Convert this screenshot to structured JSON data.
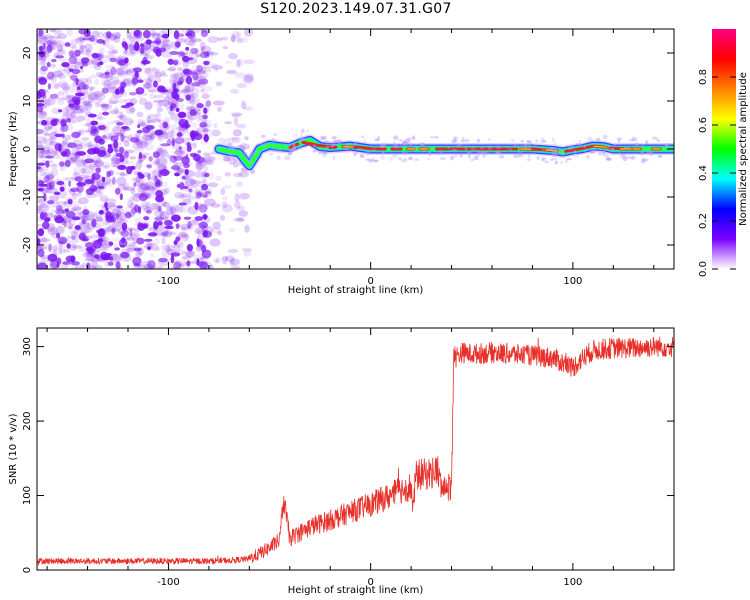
{
  "title": "S120.2023.149.07.31.G07",
  "colors": {
    "snr_line": "#e8302a",
    "noise_scatter": "#7a16f0",
    "ridge_core": "#e8202a",
    "axis": "#000000"
  },
  "chart_data": [
    {
      "type": "heatmap",
      "name": "spectrogram",
      "xlabel": "Height of straight line (km)",
      "ylabel": "Frequency (Hz)",
      "xlim": [
        -165,
        150
      ],
      "ylim": [
        -25,
        25
      ],
      "x_ticks": [
        -100,
        0,
        100
      ],
      "y_ticks": [
        -20,
        -10,
        0,
        10,
        20
      ],
      "x_tick_labels": [
        "-100",
        "0",
        "100"
      ],
      "y_tick_labels": [
        "-20",
        "-10",
        "0",
        "10",
        "20"
      ],
      "noise_region_x": [
        -165,
        -60
      ],
      "dense_noise_x": [
        -165,
        -80
      ],
      "ridge": {
        "x": [
          -75,
          -70,
          -65,
          -62,
          -60,
          -57,
          -55,
          -50,
          -45,
          -40,
          -35,
          -30,
          -25,
          -20,
          -10,
          0,
          10,
          20,
          30,
          40,
          50,
          60,
          70,
          80,
          90,
          95,
          100,
          105,
          110,
          115,
          120,
          130,
          140,
          150
        ],
        "frequency": [
          0,
          -0.5,
          -0.8,
          -2.5,
          -3.5,
          -1.5,
          0,
          0.8,
          0.5,
          0.3,
          1.2,
          1.8,
          0.5,
          0.3,
          0.6,
          0,
          0,
          0,
          0,
          0,
          0,
          0,
          0,
          0,
          -0.3,
          -0.6,
          -0.2,
          0.1,
          0.6,
          0.5,
          0,
          0,
          0,
          0
        ]
      },
      "colorbar": {
        "label": "Normalized spectral amplitude",
        "range": [
          0,
          1
        ],
        "ticks": [
          0.0,
          0.2,
          0.4,
          0.6,
          0.8
        ],
        "tick_labels": [
          "0.0",
          "0.2",
          "0.4",
          "0.6",
          "0.8"
        ],
        "colors": [
          "#ffffff",
          "#7a00ff",
          "#0000ff",
          "#00ffff",
          "#00ff00",
          "#ffff00",
          "#ff8000",
          "#ff0000",
          "#ff0080"
        ]
      }
    },
    {
      "type": "line",
      "name": "snr",
      "xlabel": "Height of straight line (km)",
      "ylabel": "SNR (10 * v/v)",
      "xlim": [
        -165,
        150
      ],
      "ylim": [
        0,
        325
      ],
      "x_ticks": [
        -100,
        0,
        100
      ],
      "y_ticks": [
        0,
        100,
        200,
        300
      ],
      "x_tick_labels": [
        "-100",
        "0",
        "100"
      ],
      "y_tick_labels": [
        "0",
        "100",
        "200",
        "300"
      ],
      "series": [
        {
          "x": [
            -165,
            -140,
            -120,
            -100,
            -80,
            -70,
            -60,
            -55,
            -50,
            -45,
            -43,
            -40,
            -35,
            -30,
            -20,
            -10,
            0,
            10,
            15,
            20,
            21,
            22,
            23,
            25,
            30,
            33,
            35,
            40,
            41,
            42,
            43,
            45,
            50,
            60,
            70,
            80,
            90,
            95,
            100,
            105,
            110,
            120,
            130,
            140,
            150
          ],
          "y": [
            12,
            12,
            12,
            12,
            12,
            13,
            15,
            22,
            30,
            40,
            95,
            42,
            50,
            58,
            67,
            78,
            88,
            100,
            108,
            112,
            75,
            122,
            128,
            128,
            130,
            135,
            110,
            112,
            295,
            285,
            288,
            292,
            290,
            292,
            290,
            288,
            285,
            278,
            272,
            285,
            295,
            298,
            298,
            300,
            300
          ]
        }
      ]
    }
  ]
}
